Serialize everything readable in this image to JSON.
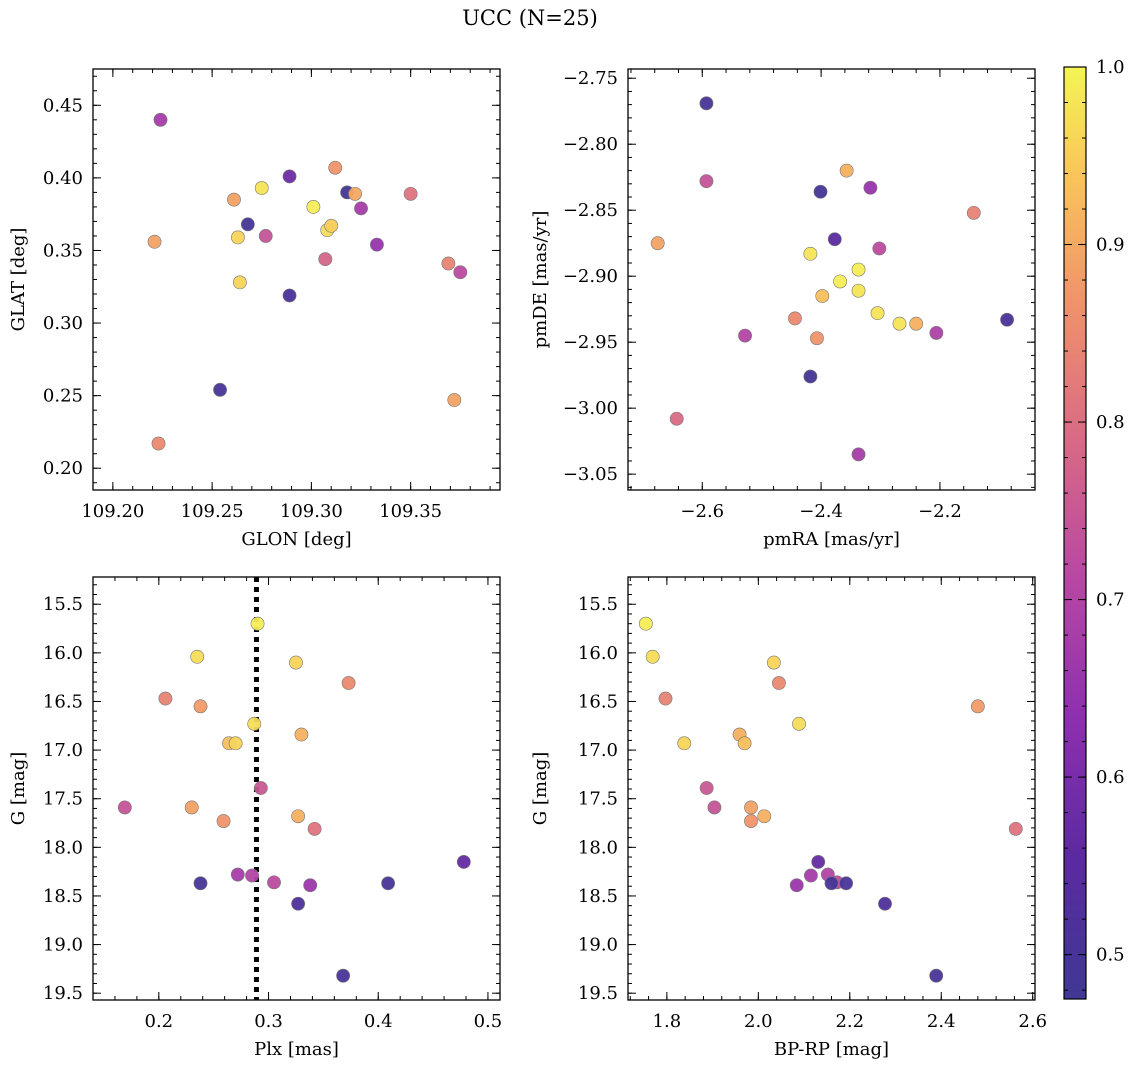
{
  "title": "UCC (N=25)",
  "colorbar": {
    "cmap": "plasma",
    "range": [
      0.475,
      1.0
    ],
    "ticks": [
      0.5,
      0.6,
      0.7,
      0.8,
      0.9,
      1.0
    ],
    "tick_labels": [
      "0.5",
      "0.6",
      "0.7",
      "0.8",
      "0.9",
      "1.0"
    ]
  },
  "chart_data": [
    {
      "type": "scatter",
      "xlabel": "GLON [deg]",
      "ylabel": "GLAT [deg]",
      "xlim": [
        109.19,
        109.395
      ],
      "ylim": [
        0.185,
        0.475
      ],
      "y_inverted": false,
      "xticks": [
        109.2,
        109.25,
        109.3,
        109.35
      ],
      "xtick_labels": [
        "109.20",
        "109.25",
        "109.30",
        "109.35"
      ],
      "yticks": [
        0.2,
        0.25,
        0.3,
        0.35,
        0.4,
        0.45
      ],
      "ytick_labels": [
        "0.20",
        "0.25",
        "0.30",
        "0.35",
        "0.40",
        "0.45"
      ],
      "points": [
        {
          "x": 109.224,
          "y": 0.44,
          "c": 0.68
        },
        {
          "x": 109.221,
          "y": 0.356,
          "c": 0.89
        },
        {
          "x": 109.223,
          "y": 0.217,
          "c": 0.85
        },
        {
          "x": 109.254,
          "y": 0.254,
          "c": 0.5
        },
        {
          "x": 109.261,
          "y": 0.385,
          "c": 0.89
        },
        {
          "x": 109.263,
          "y": 0.359,
          "c": 0.96
        },
        {
          "x": 109.264,
          "y": 0.328,
          "c": 0.96
        },
        {
          "x": 109.268,
          "y": 0.368,
          "c": 0.49
        },
        {
          "x": 109.275,
          "y": 0.393,
          "c": 0.98
        },
        {
          "x": 109.277,
          "y": 0.36,
          "c": 0.74
        },
        {
          "x": 109.289,
          "y": 0.401,
          "c": 0.58
        },
        {
          "x": 109.289,
          "y": 0.319,
          "c": 0.51
        },
        {
          "x": 109.301,
          "y": 0.38,
          "c": 0.99
        },
        {
          "x": 109.307,
          "y": 0.344,
          "c": 0.78
        },
        {
          "x": 109.308,
          "y": 0.364,
          "c": 0.97
        },
        {
          "x": 109.31,
          "y": 0.367,
          "c": 0.95
        },
        {
          "x": 109.312,
          "y": 0.407,
          "c": 0.87
        },
        {
          "x": 109.318,
          "y": 0.39,
          "c": 0.49
        },
        {
          "x": 109.322,
          "y": 0.389,
          "c": 0.9
        },
        {
          "x": 109.325,
          "y": 0.379,
          "c": 0.68
        },
        {
          "x": 109.333,
          "y": 0.354,
          "c": 0.65
        },
        {
          "x": 109.35,
          "y": 0.389,
          "c": 0.81
        },
        {
          "x": 109.369,
          "y": 0.341,
          "c": 0.84
        },
        {
          "x": 109.372,
          "y": 0.247,
          "c": 0.89
        },
        {
          "x": 109.375,
          "y": 0.335,
          "c": 0.72
        }
      ]
    },
    {
      "type": "scatter",
      "xlabel": "pmRA [mas/yr]",
      "ylabel": "pmDE [mas/yr]",
      "xlim": [
        -2.725,
        -2.04
      ],
      "ylim": [
        -3.062,
        -2.743
      ],
      "y_inverted": false,
      "xticks": [
        -2.6,
        -2.4,
        -2.2
      ],
      "xtick_labels": [
        "−2.6",
        "−2.4",
        "−2.2"
      ],
      "yticks": [
        -3.05,
        -3.0,
        -2.95,
        -2.9,
        -2.85,
        -2.8,
        -2.75
      ],
      "ytick_labels": [
        "−3.05",
        "−3.00",
        "−2.95",
        "−2.90",
        "−2.85",
        "−2.80",
        "−2.75"
      ],
      "points": [
        {
          "x": -2.593,
          "y": -2.769,
          "c": 0.5
        },
        {
          "x": -2.593,
          "y": -2.828,
          "c": 0.74
        },
        {
          "x": -2.675,
          "y": -2.875,
          "c": 0.89
        },
        {
          "x": -2.643,
          "y": -3.008,
          "c": 0.79
        },
        {
          "x": -2.528,
          "y": -2.945,
          "c": 0.7
        },
        {
          "x": -2.444,
          "y": -2.932,
          "c": 0.85
        },
        {
          "x": -2.418,
          "y": -2.883,
          "c": 0.98
        },
        {
          "x": -2.418,
          "y": -2.976,
          "c": 0.49
        },
        {
          "x": -2.407,
          "y": -2.947,
          "c": 0.87
        },
        {
          "x": -2.401,
          "y": -2.836,
          "c": 0.49
        },
        {
          "x": -2.398,
          "y": -2.915,
          "c": 0.93
        },
        {
          "x": -2.377,
          "y": -2.872,
          "c": 0.55
        },
        {
          "x": -2.368,
          "y": -2.904,
          "c": 0.99
        },
        {
          "x": -2.357,
          "y": -2.82,
          "c": 0.91
        },
        {
          "x": -2.337,
          "y": -2.895,
          "c": 0.99
        },
        {
          "x": -2.337,
          "y": -2.911,
          "c": 0.98
        },
        {
          "x": -2.337,
          "y": -3.035,
          "c": 0.68
        },
        {
          "x": -2.317,
          "y": -2.833,
          "c": 0.65
        },
        {
          "x": -2.305,
          "y": -2.928,
          "c": 0.98
        },
        {
          "x": -2.302,
          "y": -2.879,
          "c": 0.72
        },
        {
          "x": -2.268,
          "y": -2.936,
          "c": 0.98
        },
        {
          "x": -2.24,
          "y": -2.936,
          "c": 0.91
        },
        {
          "x": -2.206,
          "y": -2.943,
          "c": 0.69
        },
        {
          "x": -2.143,
          "y": -2.852,
          "c": 0.84
        },
        {
          "x": -2.087,
          "y": -2.933,
          "c": 0.51
        }
      ]
    },
    {
      "type": "scatter",
      "xlabel": "Plx [mas]",
      "ylabel": "G [mag]",
      "xlim": [
        0.14,
        0.511
      ],
      "ylim": [
        19.57,
        15.22
      ],
      "y_inverted": true,
      "xticks": [
        0.2,
        0.3,
        0.4,
        0.5
      ],
      "xtick_labels": [
        "0.2",
        "0.3",
        "0.4",
        "0.5"
      ],
      "yticks": [
        15.5,
        16.0,
        16.5,
        17.0,
        17.5,
        18.0,
        18.5,
        19.0,
        19.5
      ],
      "ytick_labels": [
        "15.5",
        "16.0",
        "16.5",
        "17.0",
        "17.5",
        "18.0",
        "18.5",
        "19.0",
        "19.5"
      ],
      "vline": {
        "x": 0.289,
        "style": "dotted"
      },
      "points": [
        {
          "x": 0.29,
          "y": 15.7,
          "c": 0.99
        },
        {
          "x": 0.235,
          "y": 16.04,
          "c": 0.97
        },
        {
          "x": 0.325,
          "y": 16.1,
          "c": 0.96
        },
        {
          "x": 0.373,
          "y": 16.31,
          "c": 0.85
        },
        {
          "x": 0.206,
          "y": 16.47,
          "c": 0.84
        },
        {
          "x": 0.238,
          "y": 16.55,
          "c": 0.88
        },
        {
          "x": 0.287,
          "y": 16.73,
          "c": 0.97
        },
        {
          "x": 0.33,
          "y": 16.84,
          "c": 0.91
        },
        {
          "x": 0.264,
          "y": 16.93,
          "c": 0.93
        },
        {
          "x": 0.27,
          "y": 16.93,
          "c": 0.96
        },
        {
          "x": 0.293,
          "y": 17.39,
          "c": 0.75
        },
        {
          "x": 0.169,
          "y": 17.59,
          "c": 0.74
        },
        {
          "x": 0.23,
          "y": 17.59,
          "c": 0.89
        },
        {
          "x": 0.259,
          "y": 17.73,
          "c": 0.87
        },
        {
          "x": 0.327,
          "y": 17.68,
          "c": 0.91
        },
        {
          "x": 0.342,
          "y": 17.81,
          "c": 0.81
        },
        {
          "x": 0.478,
          "y": 18.15,
          "c": 0.57
        },
        {
          "x": 0.272,
          "y": 18.28,
          "c": 0.68
        },
        {
          "x": 0.285,
          "y": 18.29,
          "c": 0.7
        },
        {
          "x": 0.305,
          "y": 18.36,
          "c": 0.72
        },
        {
          "x": 0.238,
          "y": 18.37,
          "c": 0.5
        },
        {
          "x": 0.338,
          "y": 18.39,
          "c": 0.66
        },
        {
          "x": 0.409,
          "y": 18.37,
          "c": 0.5
        },
        {
          "x": 0.327,
          "y": 18.58,
          "c": 0.52
        },
        {
          "x": 0.368,
          "y": 19.32,
          "c": 0.5
        }
      ]
    },
    {
      "type": "scatter",
      "xlabel": "BP-RP [mag]",
      "ylabel": "G [mag]",
      "xlim": [
        1.715,
        2.605
      ],
      "ylim": [
        19.57,
        15.22
      ],
      "y_inverted": true,
      "xticks": [
        1.8,
        2.0,
        2.2,
        2.4,
        2.6
      ],
      "xtick_labels": [
        "1.8",
        "2.0",
        "2.2",
        "2.4",
        "2.6"
      ],
      "yticks": [
        15.5,
        16.0,
        16.5,
        17.0,
        17.5,
        18.0,
        18.5,
        19.0,
        19.5
      ],
      "ytick_labels": [
        "15.5",
        "16.0",
        "16.5",
        "17.0",
        "17.5",
        "18.0",
        "18.5",
        "19.0",
        "19.5"
      ],
      "points": [
        {
          "x": 1.754,
          "y": 15.7,
          "c": 0.99
        },
        {
          "x": 1.769,
          "y": 16.04,
          "c": 0.97
        },
        {
          "x": 2.034,
          "y": 16.1,
          "c": 0.96
        },
        {
          "x": 2.045,
          "y": 16.31,
          "c": 0.85
        },
        {
          "x": 1.797,
          "y": 16.47,
          "c": 0.84
        },
        {
          "x": 2.48,
          "y": 16.55,
          "c": 0.88
        },
        {
          "x": 2.089,
          "y": 16.73,
          "c": 0.97
        },
        {
          "x": 1.959,
          "y": 16.84,
          "c": 0.91
        },
        {
          "x": 1.838,
          "y": 16.93,
          "c": 0.96
        },
        {
          "x": 1.97,
          "y": 16.93,
          "c": 0.93
        },
        {
          "x": 1.887,
          "y": 17.39,
          "c": 0.75
        },
        {
          "x": 1.904,
          "y": 17.59,
          "c": 0.74
        },
        {
          "x": 1.984,
          "y": 17.59,
          "c": 0.89
        },
        {
          "x": 1.984,
          "y": 17.73,
          "c": 0.87
        },
        {
          "x": 2.013,
          "y": 17.68,
          "c": 0.91
        },
        {
          "x": 2.563,
          "y": 17.81,
          "c": 0.81
        },
        {
          "x": 2.131,
          "y": 18.15,
          "c": 0.57
        },
        {
          "x": 2.115,
          "y": 18.29,
          "c": 0.68
        },
        {
          "x": 2.152,
          "y": 18.28,
          "c": 0.7
        },
        {
          "x": 2.172,
          "y": 18.36,
          "c": 0.72
        },
        {
          "x": 2.16,
          "y": 18.37,
          "c": 0.5
        },
        {
          "x": 2.084,
          "y": 18.39,
          "c": 0.66
        },
        {
          "x": 2.192,
          "y": 18.37,
          "c": 0.5
        },
        {
          "x": 2.277,
          "y": 18.58,
          "c": 0.52
        },
        {
          "x": 2.389,
          "y": 19.32,
          "c": 0.5
        }
      ]
    }
  ]
}
